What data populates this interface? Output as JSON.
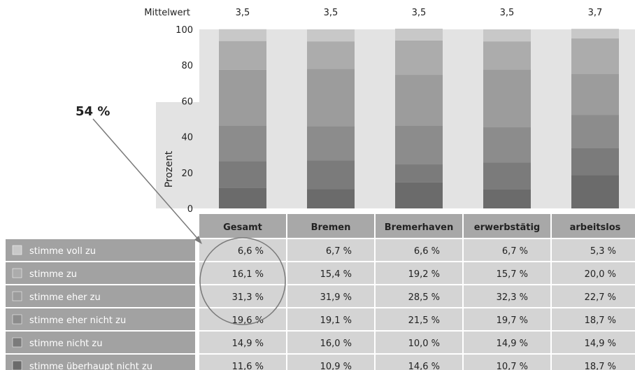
{
  "chart_data": {
    "type": "stacked-bar",
    "ylabel": "Prozent",
    "ylim": [
      0,
      100
    ],
    "yticks": [
      "0",
      "20",
      "40",
      "60",
      "80",
      "100"
    ],
    "mean_label": "Mittelwert",
    "categories": [
      "Gesamt",
      "Bremen",
      "Bremerhaven",
      "erwerbstätig",
      "arbeitslos"
    ],
    "means": [
      "3,5",
      "3,5",
      "3,5",
      "3,5",
      "3,7"
    ],
    "series": [
      {
        "name": "stimme überhaupt nicht zu",
        "color": "#6b6b6b",
        "values": [
          11.6,
          10.9,
          14.6,
          10.7,
          18.7
        ],
        "labels": [
          "11,6 %",
          "10,9 %",
          "14,6 %",
          "10,7 %",
          "18,7 %"
        ]
      },
      {
        "name": "stimme nicht zu",
        "color": "#7b7b7b",
        "values": [
          14.9,
          16.0,
          10.0,
          14.9,
          14.9
        ],
        "labels": [
          "14,9 %",
          "16,0 %",
          "10,0 %",
          "14,9 %",
          "14,9 %"
        ]
      },
      {
        "name": "stimme eher nicht zu",
        "color": "#8c8c8c",
        "values": [
          19.6,
          19.1,
          21.5,
          19.7,
          18.7
        ],
        "labels": [
          "19,6 %",
          "19,1 %",
          "21,5 %",
          "19,7 %",
          "18,7 %"
        ]
      },
      {
        "name": "stimme eher zu",
        "color": "#9c9c9c",
        "values": [
          31.3,
          31.9,
          28.5,
          32.3,
          22.7
        ],
        "labels": [
          "31,3 %",
          "31,9 %",
          "28,5 %",
          "32,3 %",
          "22,7 %"
        ]
      },
      {
        "name": "stimme zu",
        "color": "#acacac",
        "values": [
          16.1,
          15.4,
          19.2,
          15.7,
          20.0
        ],
        "labels": [
          "16,1 %",
          "15,4 %",
          "19,2 %",
          "15,7 %",
          "20,0 %"
        ]
      },
      {
        "name": "stimme voll zu",
        "color": "#c8c8c8",
        "values": [
          6.6,
          6.7,
          6.6,
          6.7,
          5.3
        ],
        "labels": [
          "6,6 %",
          "6,7 %",
          "6,6 %",
          "6,7 %",
          "5,3 %"
        ]
      }
    ],
    "annotation": {
      "text": "54 %",
      "target": "Gesamt"
    },
    "grid": false,
    "legend": "table-left"
  },
  "colors": {
    "plot_bg": "#e3e3e3",
    "header_bg": "#a8a8a8",
    "cell_bg": "#d4d4d4",
    "rowlabel_bg": "#a2a2a2",
    "swatch_border": "#ffffff"
  }
}
